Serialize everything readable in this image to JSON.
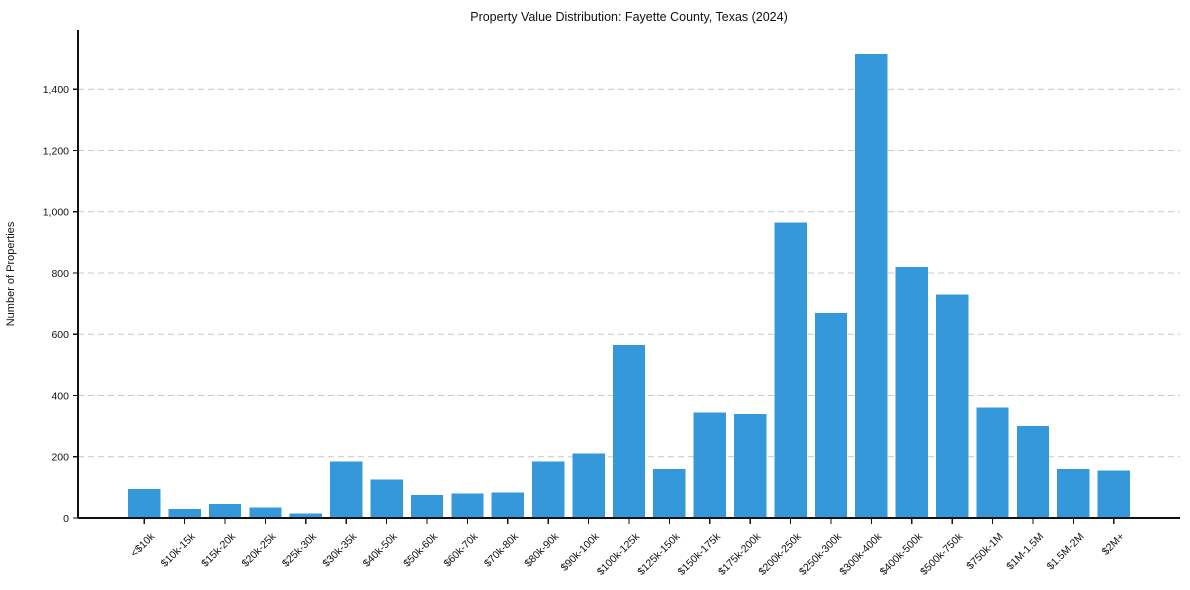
{
  "chart_data": {
    "type": "bar",
    "title": "Property Value Distribution: Fayette County, Texas (2024)",
    "xlabel": "",
    "ylabel": "Number of Properties",
    "categories": [
      "<$10k",
      "$10k-15k",
      "$15k-20k",
      "$20k-25k",
      "$25k-30k",
      "$30k-35k",
      "$40k-50k",
      "$50k-60k",
      "$60k-70k",
      "$70k-80k",
      "$80k-90k",
      "$90k-100k",
      "$100k-125k",
      "$125k-150k",
      "$150k-175k",
      "$175k-200k",
      "$200k-250k",
      "$250k-300k",
      "$300k-400k",
      "$400k-500k",
      "$500k-750k",
      "$750k-1M",
      "$1M-1.5M",
      "$1.5M-2M",
      "$2M+"
    ],
    "values": [
      95,
      30,
      45,
      35,
      15,
      185,
      125,
      75,
      80,
      83,
      185,
      210,
      565,
      160,
      345,
      340,
      965,
      670,
      1515,
      820,
      730,
      360,
      300,
      160,
      155
    ],
    "ylim": [
      0,
      1590
    ],
    "yticks": [
      0,
      200,
      400,
      600,
      800,
      1000,
      1200,
      1400
    ],
    "ytick_labels": [
      "0",
      "200",
      "400",
      "600",
      "800",
      "1,000",
      "1,200",
      "1,400"
    ],
    "grid": "horizontal-dashed",
    "legend": "none",
    "x_tick_rotation": 45,
    "bar_color": "#3498db"
  },
  "colors": {
    "bar": "#3498db",
    "grid": "#c9c9c9",
    "axis": "#111111",
    "text": "#111111",
    "background": "#ffffff"
  }
}
